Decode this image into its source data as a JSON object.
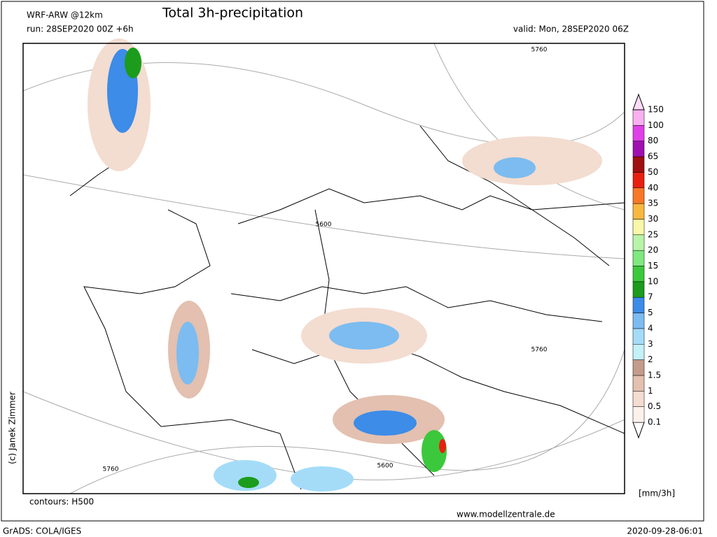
{
  "header": {
    "model": "WRF-ARW @12km",
    "title": "Total 3h-precipitation",
    "run": "run: 28SEP2020 00Z +6h",
    "valid": "valid: Mon, 28SEP2020 06Z"
  },
  "map": {
    "contour_labels": [
      "5760",
      "5600",
      "5760",
      "5760",
      "5600"
    ],
    "contours_note": "contours: H500",
    "copyright": "(c) Janek Zimmer",
    "website": "www.modellzentrale.de"
  },
  "legend": {
    "levels": [
      0.1,
      0.5,
      1,
      1.5,
      2,
      3,
      4,
      5,
      7,
      10,
      15,
      20,
      25,
      30,
      35,
      40,
      50,
      65,
      80,
      100,
      150
    ],
    "colors": [
      "#fdf1ec",
      "#f3dcd0",
      "#e3c0b0",
      "#c49c8c",
      "#c4f0f8",
      "#a4dcf8",
      "#7cbcf0",
      "#3c8ce8",
      "#1c9c1c",
      "#3cc83c",
      "#80e880",
      "#b8f4a8",
      "#f8f8a8",
      "#f8b840",
      "#f87828",
      "#e82010",
      "#a01010",
      "#a010b0",
      "#e040e8",
      "#f8b0f0",
      "#fcdcf8"
    ],
    "unit": "[mm/3h]"
  },
  "footer": {
    "software": "GrADS: COLA/IGES",
    "timestamp": "2020-09-28-06:01"
  }
}
